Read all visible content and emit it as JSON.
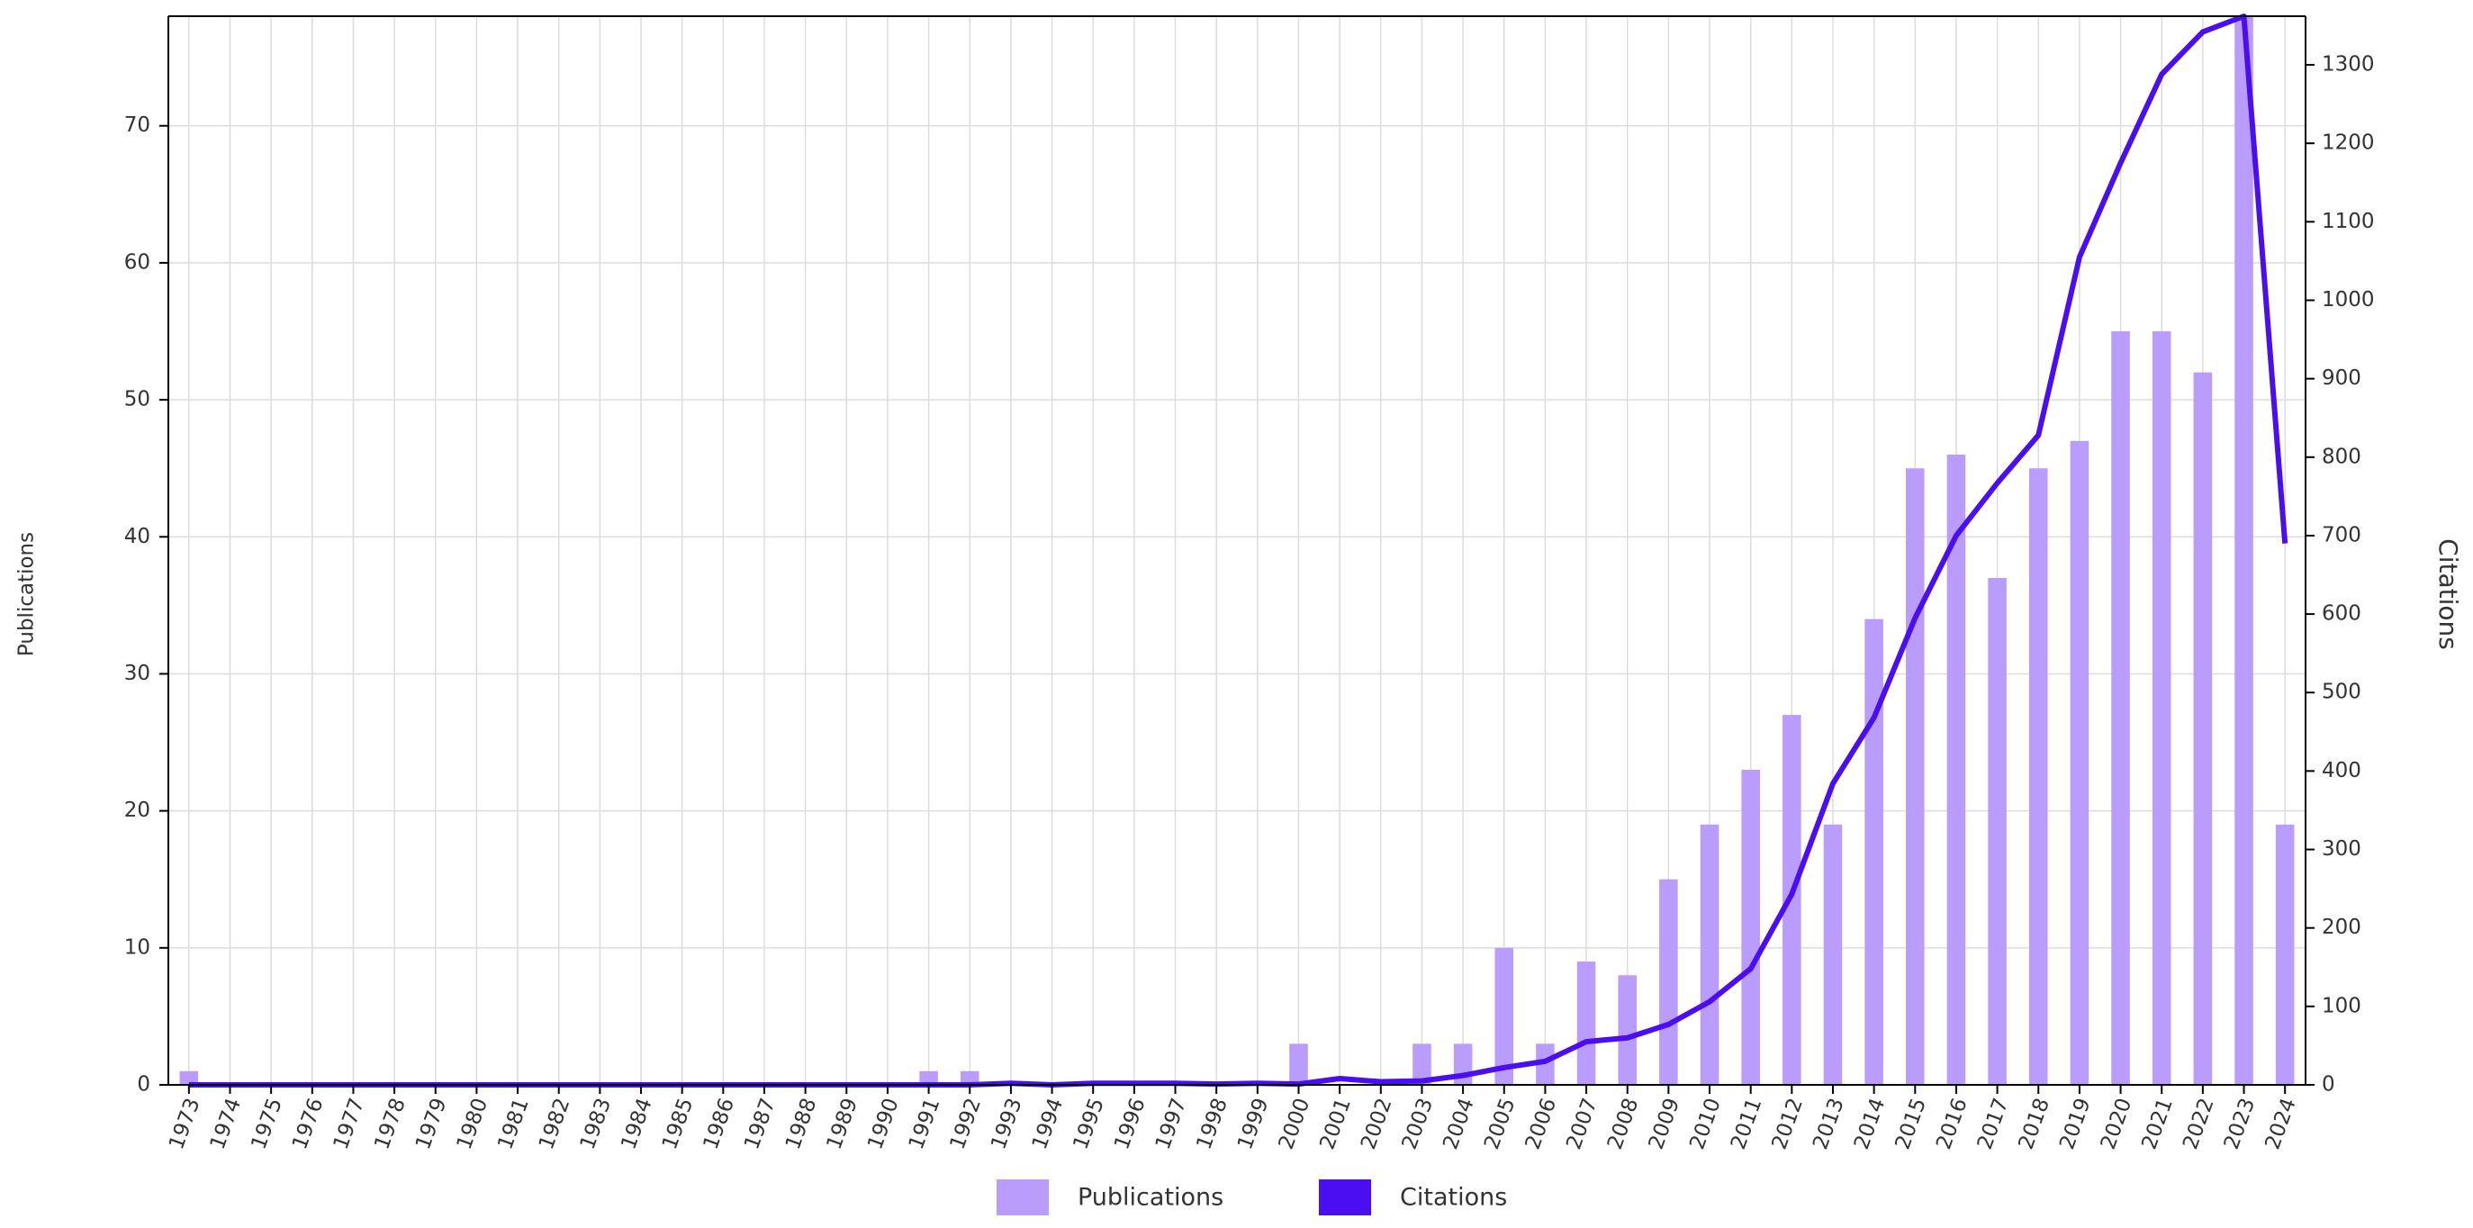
{
  "chart_data": {
    "type": "bar",
    "categories": [
      "1973",
      "1974",
      "1975",
      "1976",
      "1977",
      "1978",
      "1979",
      "1980",
      "1981",
      "1982",
      "1983",
      "1984",
      "1985",
      "1986",
      "1987",
      "1988",
      "1989",
      "1990",
      "1991",
      "1992",
      "1993",
      "1994",
      "1995",
      "1996",
      "1997",
      "1998",
      "1999",
      "2000",
      "2001",
      "2002",
      "2003",
      "2004",
      "2005",
      "2006",
      "2007",
      "2008",
      "2009",
      "2010",
      "2011",
      "2012",
      "2013",
      "2014",
      "2015",
      "2016",
      "2017",
      "2018",
      "2019",
      "2020",
      "2021",
      "2022",
      "2023",
      "2024"
    ],
    "series": [
      {
        "name": "Publications",
        "color": "#b99cfc",
        "type": "bar",
        "values": [
          1,
          0,
          0,
          0,
          0,
          0,
          0,
          0,
          0,
          0,
          0,
          0,
          0,
          0,
          0,
          0,
          0,
          0,
          1,
          1,
          0,
          0,
          0,
          0,
          0,
          0,
          0,
          3,
          0,
          0,
          3,
          3,
          10,
          3,
          9,
          8,
          15,
          19,
          23,
          27,
          19,
          34,
          45,
          46,
          37,
          45,
          47,
          55,
          55,
          52,
          78,
          19
        ]
      },
      {
        "name": "Citations",
        "color": "#4a0ef0",
        "type": "line",
        "axis": "y2",
        "values": [
          0,
          0,
          0,
          0,
          0,
          0,
          0,
          0,
          0,
          0,
          0,
          0,
          0,
          0,
          0,
          0,
          0,
          0,
          0,
          0,
          2,
          0,
          2,
          2,
          2,
          1,
          2,
          1,
          8,
          4,
          5,
          12,
          22,
          30,
          55,
          60,
          77,
          106,
          148,
          243,
          384,
          468,
          595,
          700,
          767,
          828,
          1055,
          1175,
          1288,
          1342,
          1362,
          690
        ]
      }
    ],
    "ylabel": "Publications",
    "y2label": "Citations",
    "ylim": [
      0,
      78
    ],
    "yticks": [
      0,
      10,
      20,
      30,
      40,
      50,
      60,
      70
    ],
    "y2lim": [
      0,
      1362
    ],
    "y2ticks": [
      0,
      100,
      200,
      300,
      400,
      500,
      600,
      700,
      800,
      900,
      1000,
      1100,
      1200,
      1300
    ],
    "grid": true,
    "legend": "bottom"
  }
}
